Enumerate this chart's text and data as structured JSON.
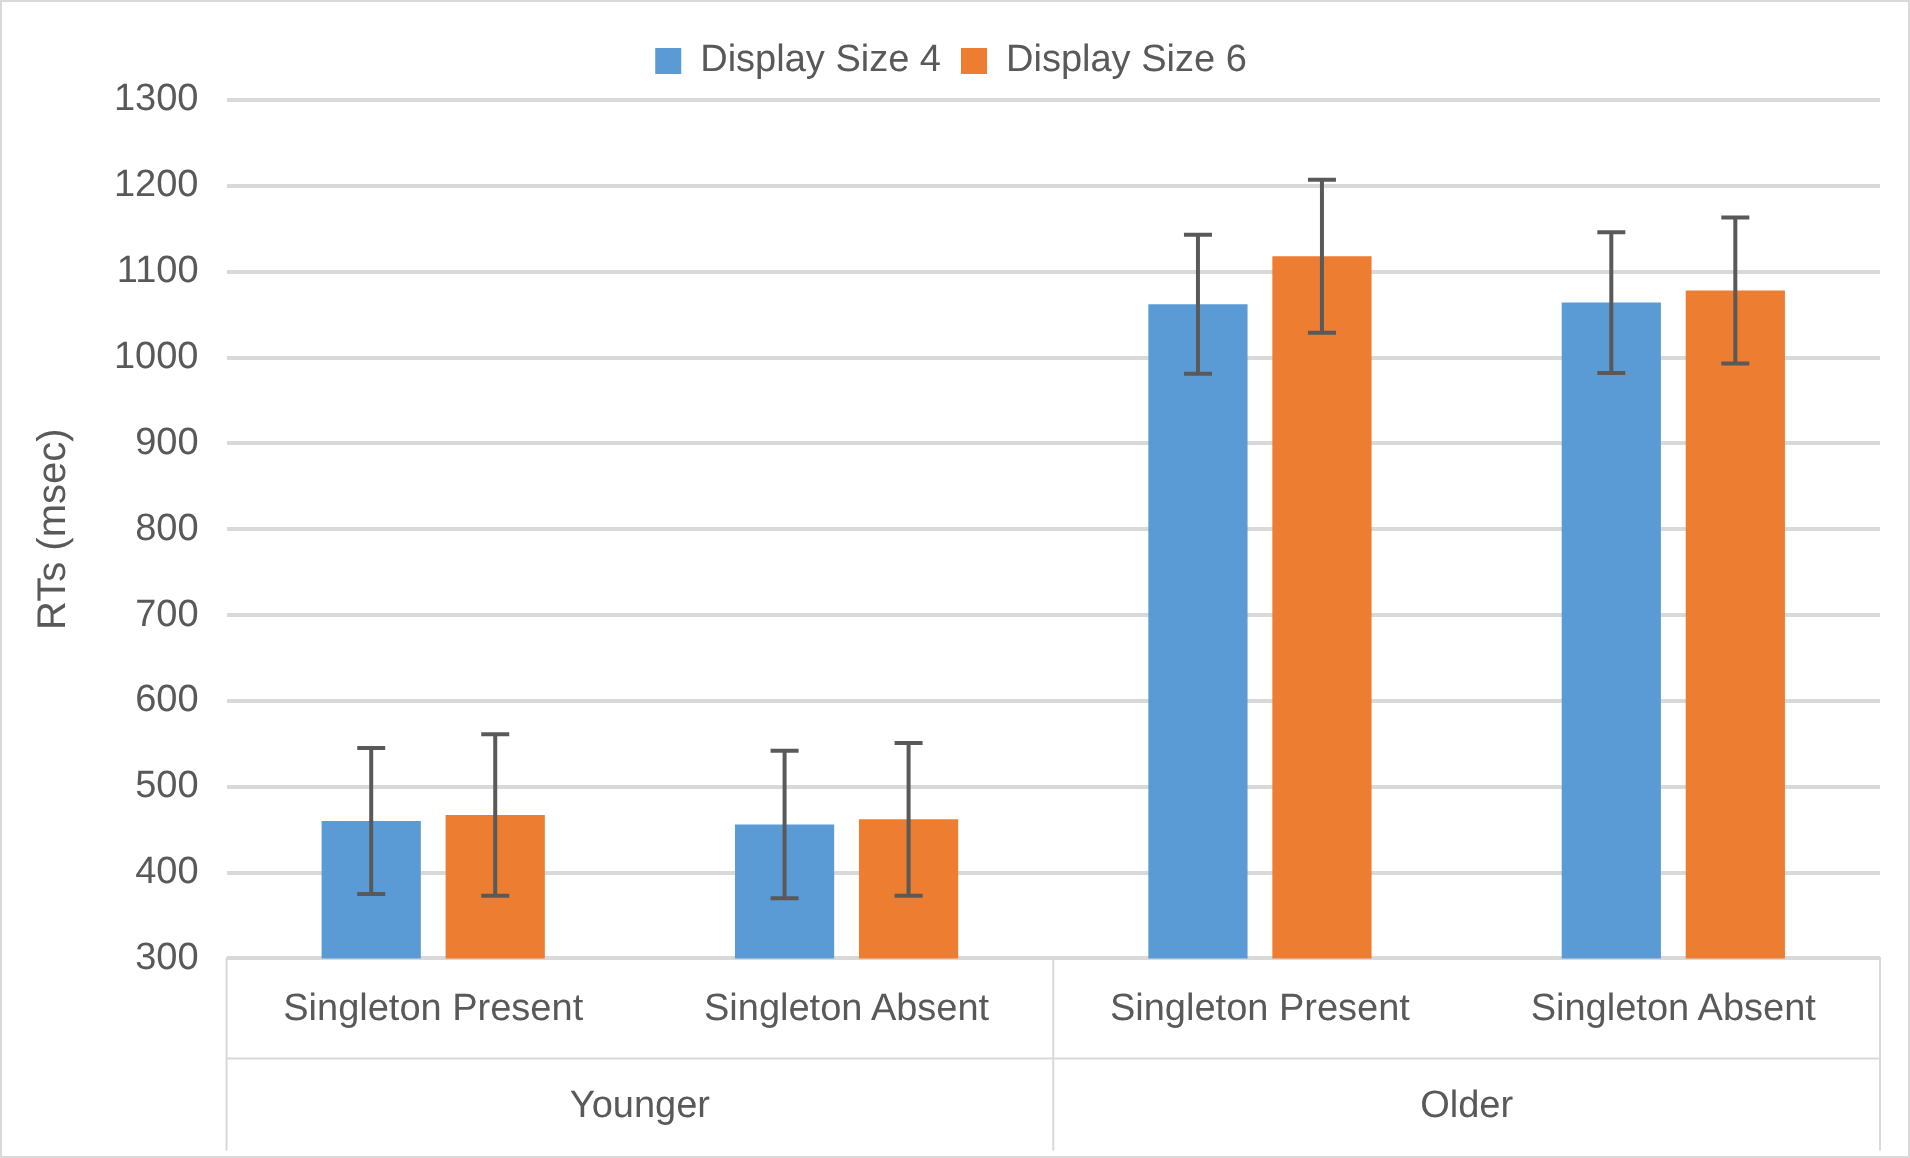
{
  "chart_data": {
    "type": "bar",
    "ylabel": "RTs (msec)",
    "categories": [
      "Singleton Present",
      "Singleton Absent",
      "Singleton Present",
      "Singleton Absent"
    ],
    "annotations": [
      "Younger",
      "Older"
    ],
    "series": [
      {
        "name": "Display Size 4",
        "color": "#5b9bd5",
        "values": [
          460,
          456,
          1062,
          1064
        ],
        "errors": [
          85,
          86,
          81,
          82
        ]
      },
      {
        "name": "Display Size 6",
        "color": "#ed7d31",
        "values": [
          467,
          462,
          1118,
          1078
        ],
        "errors": [
          94,
          89,
          89,
          85
        ]
      }
    ],
    "ylim": [
      300,
      1300
    ],
    "yticks": [
      300,
      400,
      500,
      600,
      700,
      800,
      900,
      1000,
      1100,
      1200,
      1300
    ],
    "grid": "y",
    "legend": "top"
  }
}
